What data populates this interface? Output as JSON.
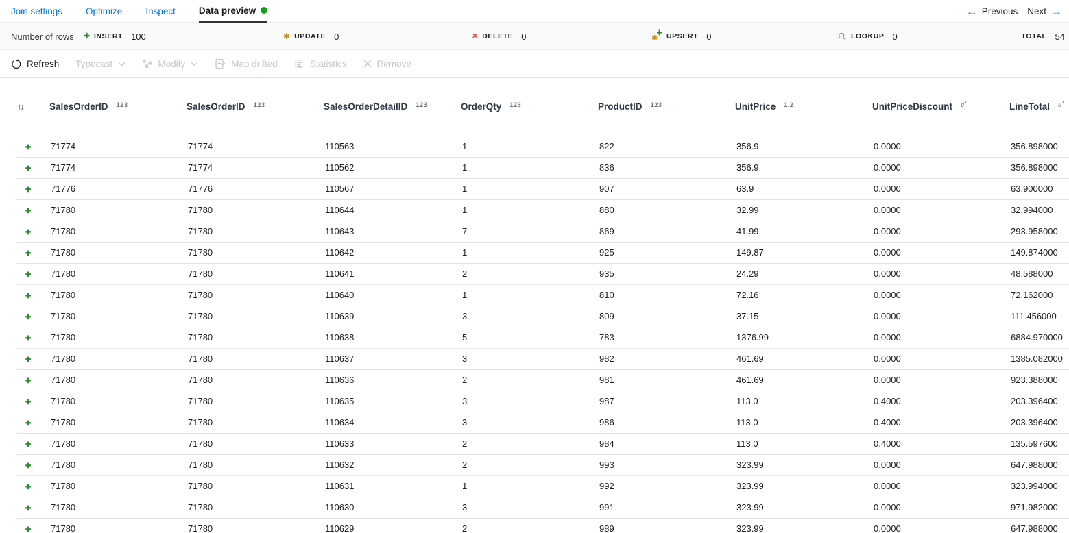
{
  "tabs": {
    "items": [
      {
        "label": "Join settings",
        "active": false
      },
      {
        "label": "Optimize",
        "active": false
      },
      {
        "label": "Inspect",
        "active": false
      },
      {
        "label": "Data preview",
        "active": true
      }
    ]
  },
  "pager": {
    "previous_label": "Previous",
    "next_label": "Next"
  },
  "stats": {
    "rows_label": "Number of rows",
    "insert": {
      "label": "INSERT",
      "value": "100"
    },
    "update": {
      "label": "UPDATE",
      "value": "0"
    },
    "delete": {
      "label": "DELETE",
      "value": "0"
    },
    "upsert": {
      "label": "UPSERT",
      "value": "0"
    },
    "lookup": {
      "label": "LOOKUP",
      "value": "0"
    },
    "total": {
      "label": "TOTAL",
      "value": "54"
    }
  },
  "toolbar": {
    "refresh_label": "Refresh",
    "typecast_label": "Typecast",
    "modify_label": "Modify",
    "map_drifted_label": "Map drifted",
    "statistics_label": "Statistics",
    "remove_label": "Remove"
  },
  "table": {
    "columns": [
      {
        "name": "SalesOrderID",
        "type": "123"
      },
      {
        "name": "SalesOrderID",
        "type": "123"
      },
      {
        "name": "SalesOrderDetailID",
        "type": "123"
      },
      {
        "name": "OrderQty",
        "type": "123"
      },
      {
        "name": "ProductID",
        "type": "123"
      },
      {
        "name": "UnitPrice",
        "type": "1.2"
      },
      {
        "name": "UnitPriceDiscount",
        "type": "ex"
      },
      {
        "name": "LineTotal",
        "type": "ex"
      }
    ],
    "rows": [
      [
        "71774",
        "71774",
        "110563",
        "1",
        "822",
        "356.9",
        "0.0000",
        "356.898000"
      ],
      [
        "71774",
        "71774",
        "110562",
        "1",
        "836",
        "356.9",
        "0.0000",
        "356.898000"
      ],
      [
        "71776",
        "71776",
        "110567",
        "1",
        "907",
        "63.9",
        "0.0000",
        "63.900000"
      ],
      [
        "71780",
        "71780",
        "110644",
        "1",
        "880",
        "32.99",
        "0.0000",
        "32.994000"
      ],
      [
        "71780",
        "71780",
        "110643",
        "7",
        "869",
        "41.99",
        "0.0000",
        "293.958000"
      ],
      [
        "71780",
        "71780",
        "110642",
        "1",
        "925",
        "149.87",
        "0.0000",
        "149.874000"
      ],
      [
        "71780",
        "71780",
        "110641",
        "2",
        "935",
        "24.29",
        "0.0000",
        "48.588000"
      ],
      [
        "71780",
        "71780",
        "110640",
        "1",
        "810",
        "72.16",
        "0.0000",
        "72.162000"
      ],
      [
        "71780",
        "71780",
        "110639",
        "3",
        "809",
        "37.15",
        "0.0000",
        "111.456000"
      ],
      [
        "71780",
        "71780",
        "110638",
        "5",
        "783",
        "1376.99",
        "0.0000",
        "6884.970000"
      ],
      [
        "71780",
        "71780",
        "110637",
        "3",
        "982",
        "461.69",
        "0.0000",
        "1385.082000"
      ],
      [
        "71780",
        "71780",
        "110636",
        "2",
        "981",
        "461.69",
        "0.0000",
        "923.388000"
      ],
      [
        "71780",
        "71780",
        "110635",
        "3",
        "987",
        "113.0",
        "0.4000",
        "203.396400"
      ],
      [
        "71780",
        "71780",
        "110634",
        "3",
        "986",
        "113.0",
        "0.4000",
        "203.396400"
      ],
      [
        "71780",
        "71780",
        "110633",
        "2",
        "984",
        "113.0",
        "0.4000",
        "135.597600"
      ],
      [
        "71780",
        "71780",
        "110632",
        "2",
        "993",
        "323.99",
        "0.0000",
        "647.988000"
      ],
      [
        "71780",
        "71780",
        "110631",
        "1",
        "992",
        "323.99",
        "0.0000",
        "323.994000"
      ],
      [
        "71780",
        "71780",
        "110630",
        "3",
        "991",
        "323.99",
        "0.0000",
        "971.982000"
      ],
      [
        "71780",
        "71780",
        "110629",
        "2",
        "989",
        "323.99",
        "0.0000",
        "647.988000"
      ]
    ]
  },
  "colors": {
    "link_blue": "#0077d4",
    "active_tab_dot_green": "#12a112",
    "insert_green": "#348a34",
    "update_orange": "#c98b22",
    "delete_red": "#d94f3d",
    "disabled_gray": "#c8c6c4",
    "header_text": "#2e3a47"
  }
}
